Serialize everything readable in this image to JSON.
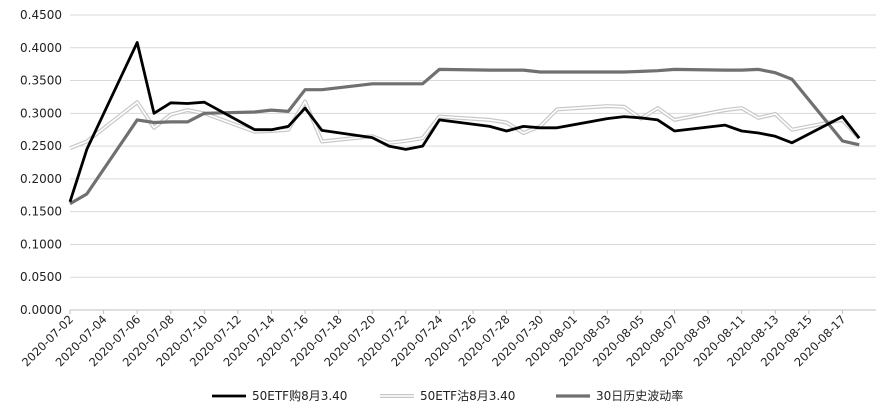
{
  "chart_data": {
    "type": "line",
    "title": "",
    "xlabel": "",
    "ylabel": "",
    "ylim": [
      0,
      0.45
    ],
    "yticks": [
      "0.0000",
      "0.0500",
      "0.1000",
      "0.1500",
      "0.2000",
      "0.2500",
      "0.3000",
      "0.3500",
      "0.4000",
      "0.4500"
    ],
    "ytick_values": [
      0,
      0.05,
      0.1,
      0.15,
      0.2,
      0.25,
      0.3,
      0.35,
      0.4,
      0.45
    ],
    "grid": "horizontal",
    "legend_position": "bottom",
    "xtick_labels": [
      "2020-07-02",
      "2020-07-04",
      "2020-07-06",
      "2020-07-08",
      "2020-07-10",
      "2020-07-12",
      "2020-07-14",
      "2020-07-16",
      "2020-07-18",
      "2020-07-20",
      "2020-07-22",
      "2020-07-24",
      "2020-07-26",
      "2020-07-28",
      "2020-07-30",
      "2020-08-01",
      "2020-08-03",
      "2020-08-05",
      "2020-08-07",
      "2020-08-09",
      "2020-08-11",
      "2020-08-13",
      "2020-08-15",
      "2020-08-17"
    ],
    "x": [
      "2020-07-02",
      "2020-07-03",
      "2020-07-06",
      "2020-07-07",
      "2020-07-08",
      "2020-07-09",
      "2020-07-10",
      "2020-07-13",
      "2020-07-14",
      "2020-07-15",
      "2020-07-16",
      "2020-07-17",
      "2020-07-20",
      "2020-07-21",
      "2020-07-22",
      "2020-07-23",
      "2020-07-24",
      "2020-07-27",
      "2020-07-28",
      "2020-07-29",
      "2020-07-30",
      "2020-07-31",
      "2020-08-03",
      "2020-08-04",
      "2020-08-05",
      "2020-08-06",
      "2020-08-07",
      "2020-08-10",
      "2020-08-11",
      "2020-08-12",
      "2020-08-13",
      "2020-08-14",
      "2020-08-17",
      "2020-08-18"
    ],
    "series": [
      {
        "name": "50ETF购8月3.40",
        "color": "#000000",
        "values": [
          0.165,
          0.245,
          0.408,
          0.3,
          0.316,
          0.315,
          0.317,
          0.275,
          0.275,
          0.28,
          0.308,
          0.274,
          0.263,
          0.25,
          0.245,
          0.25,
          0.29,
          0.28,
          0.273,
          0.28,
          0.278,
          0.278,
          0.292,
          0.295,
          0.293,
          0.29,
          0.273,
          0.282,
          0.273,
          0.27,
          0.265,
          0.255,
          0.295,
          0.262
        ]
      },
      {
        "name": "50ETF沽8月3.40",
        "color": "#d6d6d6",
        "values": [
          0.247,
          0.257,
          0.317,
          0.278,
          0.298,
          0.305,
          0.3,
          0.272,
          0.273,
          0.275,
          0.318,
          0.257,
          0.265,
          0.255,
          0.258,
          0.262,
          0.295,
          0.29,
          0.286,
          0.27,
          0.28,
          0.306,
          0.311,
          0.31,
          0.292,
          0.308,
          0.29,
          0.305,
          0.308,
          0.293,
          0.299,
          0.275,
          0.29,
          0.262
        ]
      },
      {
        "name": "30日历史波动率",
        "color": "#707070",
        "values": [
          0.162,
          0.177,
          0.29,
          0.286,
          0.287,
          0.287,
          0.3,
          0.302,
          0.305,
          0.303,
          0.336,
          0.336,
          0.345,
          0.345,
          0.345,
          0.345,
          0.367,
          0.366,
          0.366,
          0.366,
          0.363,
          0.363,
          0.363,
          0.363,
          0.364,
          0.365,
          0.367,
          0.366,
          0.366,
          0.367,
          0.362,
          0.352,
          0.258,
          0.252
        ]
      }
    ]
  }
}
